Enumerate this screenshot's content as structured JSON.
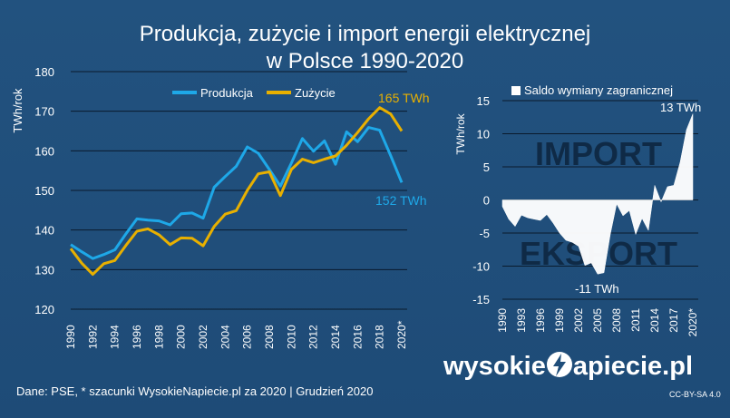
{
  "title_line1": "Produkcja, zużycie i import energii elektrycznej",
  "title_line2": "w Polsce 1990-2020",
  "footer": "Dane: PSE, * szacunki WysokieNapiecie.pl za 2020   |  Grudzień 2020",
  "brand": {
    "pre": "wysokie",
    "post": "apiecie.pl"
  },
  "license": "CC-BY-SA 4.0",
  "colors": {
    "produkcja": "#1ea8e8",
    "zuzycie": "#e8b000",
    "background": "#1f4e7a",
    "area": "#ffffff",
    "grid": "#0a1a2c"
  },
  "chart_data": [
    {
      "type": "line",
      "ylabel": "TWh/rok",
      "ylim": [
        120,
        180
      ],
      "yticks": [
        "120",
        "130",
        "140",
        "150",
        "160",
        "170",
        "180"
      ],
      "xtick_labels": [
        "1990",
        "1992",
        "1994",
        "1996",
        "1998",
        "2000",
        "2002",
        "2004",
        "2006",
        "2008",
        "2010",
        "2012",
        "2014",
        "2016",
        "2018",
        "2020*"
      ],
      "x": [
        1990,
        1991,
        1992,
        1993,
        1994,
        1995,
        1996,
        1997,
        1998,
        1999,
        2000,
        2001,
        2002,
        2003,
        2004,
        2005,
        2006,
        2007,
        2008,
        2009,
        2010,
        2011,
        2012,
        2013,
        2014,
        2015,
        2016,
        2017,
        2018,
        2019,
        2020
      ],
      "series": [
        {
          "name": "Produkcja",
          "values": [
            136.3,
            134.5,
            132.8,
            133.8,
            135.0,
            139.0,
            142.8,
            142.5,
            142.3,
            141.3,
            144.1,
            144.3,
            143.0,
            150.8,
            153.5,
            156.1,
            161.0,
            159.4,
            155.3,
            151.1,
            156.9,
            163.1,
            159.9,
            162.5,
            156.6,
            164.8,
            162.3,
            165.9,
            165.2,
            158.8,
            152.0
          ]
        },
        {
          "name": "Zużycie",
          "values": [
            135.3,
            131.6,
            128.8,
            131.5,
            132.3,
            136.1,
            139.7,
            140.3,
            138.8,
            136.3,
            138.0,
            137.9,
            136.0,
            140.9,
            144.0,
            144.9,
            150.0,
            154.2,
            154.7,
            148.7,
            155.3,
            157.9,
            157.0,
            157.9,
            158.7,
            161.4,
            164.6,
            168.1,
            170.9,
            169.3,
            165.0
          ]
        }
      ],
      "annotations": [
        "165 TWh",
        "152  TWh"
      ]
    },
    {
      "type": "area",
      "ylabel": "TWh/rok",
      "ylim": [
        -15,
        15
      ],
      "yticks": [
        "-15",
        "-10",
        "-5",
        "0",
        "5",
        "10",
        "15"
      ],
      "xtick_labels": [
        "1990",
        "1993",
        "1996",
        "1999",
        "2002",
        "2005",
        "2008",
        "2011",
        "2014",
        "2017",
        "2020*"
      ],
      "x": [
        1990,
        1991,
        1992,
        1993,
        1994,
        1995,
        1996,
        1997,
        1998,
        1999,
        2000,
        2001,
        2002,
        2003,
        2004,
        2005,
        2006,
        2007,
        2008,
        2009,
        2010,
        2011,
        2012,
        2013,
        2014,
        2015,
        2016,
        2017,
        2018,
        2019,
        2020
      ],
      "series": [
        {
          "name": "Saldo wymiany zagranicznej",
          "values": [
            -1.0,
            -2.9,
            -4.0,
            -2.3,
            -2.7,
            -2.9,
            -3.1,
            -2.2,
            -3.5,
            -5.0,
            -6.1,
            -6.4,
            -7.0,
            -9.9,
            -9.5,
            -11.2,
            -11.0,
            -5.2,
            -0.6,
            -2.4,
            -1.6,
            -5.2,
            -2.8,
            -4.6,
            2.2,
            -0.3,
            2.0,
            2.2,
            5.7,
            10.6,
            13.0
          ]
        }
      ],
      "legend": "Saldo wymiany zagranicznej",
      "region_labels": [
        "IMPORT",
        "EKSPORT"
      ],
      "annotations": [
        "13 TWh",
        "-11 TWh"
      ]
    }
  ]
}
